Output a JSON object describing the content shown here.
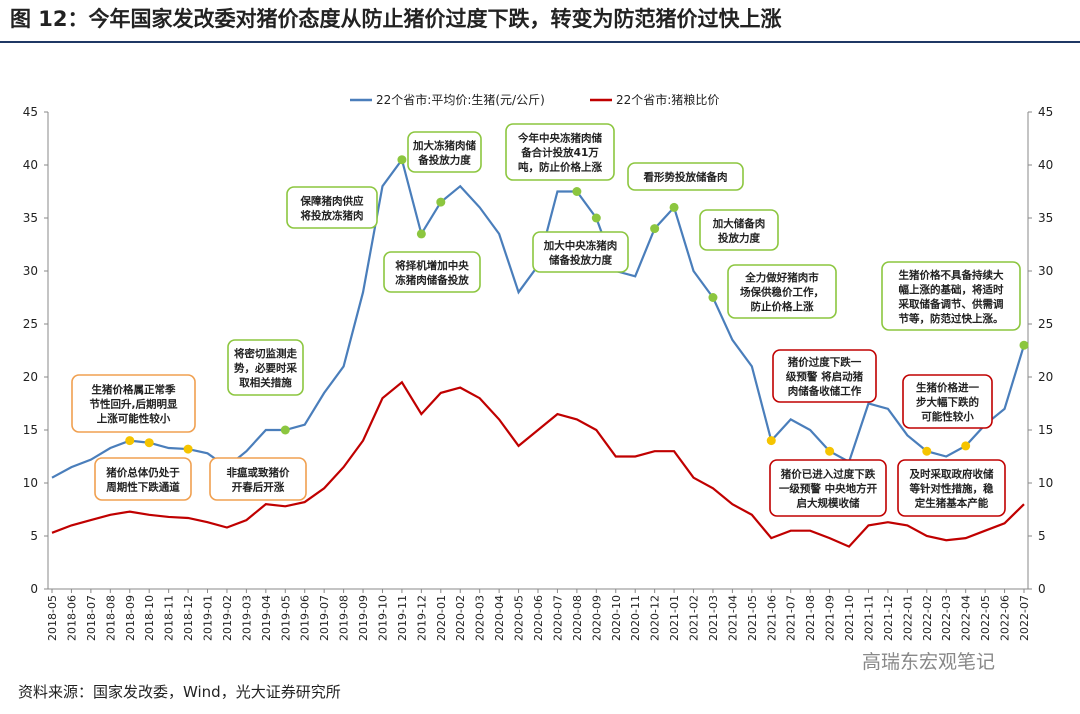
{
  "chart_data": {
    "type": "line",
    "title": "图 12：今年国家发改委对猪价态度从防止猪价过度下跌，转变为防范猪价过快上涨",
    "source": "资料来源：国家发改委，Wind，光大证券研究所",
    "watermark": "高瑞东宏观笔记",
    "categories": [
      "2018-05",
      "2018-06",
      "2018-07",
      "2018-08",
      "2018-09",
      "2018-10",
      "2018-11",
      "2018-12",
      "2019-01",
      "2019-02",
      "2019-03",
      "2019-04",
      "2019-05",
      "2019-06",
      "2019-07",
      "2019-08",
      "2019-09",
      "2019-10",
      "2019-11",
      "2019-12",
      "2020-01",
      "2020-02",
      "2020-03",
      "2020-04",
      "2020-05",
      "2020-06",
      "2020-07",
      "2020-08",
      "2020-09",
      "2020-10",
      "2020-11",
      "2020-12",
      "2021-01",
      "2021-02",
      "2021-03",
      "2021-04",
      "2021-05",
      "2021-06",
      "2021-07",
      "2021-08",
      "2021-09",
      "2021-10",
      "2021-11",
      "2021-12",
      "2022-01",
      "2022-02",
      "2022-03",
      "2022-04",
      "2022-05",
      "2022-06",
      "2022-07"
    ],
    "series": [
      {
        "name": "22个省市:平均价:生猪(元/公斤)",
        "color": "#4a7ebb",
        "axis": "y",
        "values": [
          10.5,
          11.5,
          12.2,
          13.3,
          14.0,
          13.8,
          13.3,
          13.2,
          12.8,
          11.5,
          13.0,
          15.0,
          15.0,
          15.5,
          18.5,
          21.0,
          28.0,
          38.0,
          40.5,
          33.5,
          36.5,
          38.0,
          36.0,
          33.5,
          28.0,
          30.5,
          37.5,
          37.5,
          35.0,
          30.0,
          29.5,
          34.0,
          36.0,
          30.0,
          27.5,
          23.5,
          21.0,
          14.0,
          16.0,
          15.0,
          13.0,
          12.0,
          17.5,
          17.0,
          14.5,
          13.0,
          12.5,
          13.5,
          15.5,
          17.0,
          23.0
        ]
      },
      {
        "name": "22个省市:猪粮比价",
        "color": "#c00000",
        "axis": "y2",
        "values": [
          5.3,
          6.0,
          6.5,
          7.0,
          7.3,
          7.0,
          6.8,
          6.7,
          6.3,
          5.8,
          6.5,
          8.0,
          7.8,
          8.2,
          9.5,
          11.5,
          14.0,
          18.0,
          19.5,
          16.5,
          18.5,
          19.0,
          18.0,
          16.0,
          13.5,
          15.0,
          16.5,
          16.0,
          15.0,
          12.5,
          12.5,
          13.0,
          13.0,
          10.5,
          9.5,
          8.0,
          7.0,
          4.8,
          5.5,
          5.5,
          4.8,
          4.0,
          6.0,
          6.3,
          6.0,
          5.0,
          4.6,
          4.8,
          5.5,
          6.2,
          8.0
        ]
      }
    ],
    "ylim": [
      0,
      45
    ],
    "yticks": [
      0,
      5,
      10,
      15,
      20,
      25,
      30,
      35,
      40,
      45
    ],
    "y2lim": [
      0,
      45
    ],
    "y2ticks": [
      0,
      5,
      10,
      15,
      20,
      25,
      30,
      35,
      40,
      45
    ],
    "legend": "top",
    "annotations": [
      {
        "lines": [
          "生猪价格属正常季",
          "节性回升,后期明显",
          "上涨可能性较小"
        ],
        "color": "#f0a050"
      },
      {
        "lines": [
          "猪价总体仍处于",
          "周期性下跌通道"
        ],
        "color": "#f0a050"
      },
      {
        "lines": [
          "非瘟或致猪价",
          "开春后开涨"
        ],
        "color": "#f0a050"
      },
      {
        "lines": [
          "将密切监测走",
          "势，必要时采",
          "取相关措施"
        ],
        "color": "#8cc63f"
      },
      {
        "lines": [
          "保障猪肉供应",
          "将投放冻猪肉"
        ],
        "color": "#8cc63f"
      },
      {
        "lines": [
          "将择机增加中央",
          "冻猪肉储备投放"
        ],
        "color": "#8cc63f"
      },
      {
        "lines": [
          "加大冻猪肉储",
          "备投放力度"
        ],
        "color": "#8cc63f"
      },
      {
        "lines": [
          "今年中央冻猪肉储",
          "备合计投放41万",
          "吨，防止价格上涨"
        ],
        "color": "#8cc63f"
      },
      {
        "lines": [
          "加大中央冻猪肉",
          "储备投放力度"
        ],
        "color": "#8cc63f"
      },
      {
        "lines": [
          "看形势投放储备肉"
        ],
        "color": "#8cc63f"
      },
      {
        "lines": [
          "加大储备肉",
          "投放力度"
        ],
        "color": "#8cc63f"
      },
      {
        "lines": [
          "全力做好猪肉市",
          "场保供稳价工作，",
          "防止价格上涨"
        ],
        "color": "#8cc63f"
      },
      {
        "lines": [
          "猪价过度下跌一",
          "级预警 将启动猪",
          "肉储备收储工作"
        ],
        "color": "#c00000"
      },
      {
        "lines": [
          "猪价已进入过度下跌",
          "一级预警 中央地方开",
          "启大规模收储"
        ],
        "color": "#c00000"
      },
      {
        "lines": [
          "生猪价格进一",
          "步大幅下跌的",
          "可能性较小"
        ],
        "color": "#c00000"
      },
      {
        "lines": [
          "及时采取政府收储",
          "等针对性措施，稳",
          "定生猪基本产能"
        ],
        "color": "#c00000"
      },
      {
        "lines": [
          "生猪价格不具备持续大",
          "幅上涨的基础，将适时",
          "采取储备调节、供需调",
          "节等，防范过快上涨。"
        ],
        "color": "#8cc63f"
      }
    ]
  }
}
